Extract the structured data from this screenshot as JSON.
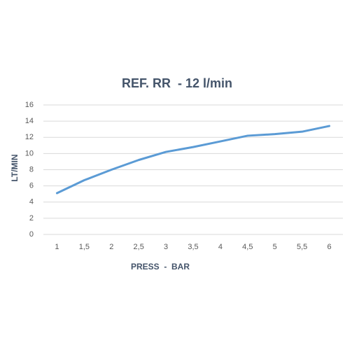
{
  "chart_data": {
    "type": "line",
    "title": "REF. RR  - 12 l/min",
    "x_label": "PRESS  -  BAR",
    "y_label": "LT/MIN",
    "categories": [
      "1",
      "1,5",
      "2",
      "2,5",
      "3",
      "3,5",
      "4",
      "4,5",
      "5",
      "5,5",
      "6"
    ],
    "values": [
      5.1,
      6.7,
      8.0,
      9.2,
      10.2,
      10.8,
      11.5,
      12.2,
      12.4,
      12.7,
      13.4
    ],
    "color": "#5b9bd5",
    "ylim": [
      0,
      16
    ],
    "yticks": [
      0,
      2,
      4,
      6,
      8,
      10,
      12,
      14,
      16
    ],
    "grid": true
  }
}
